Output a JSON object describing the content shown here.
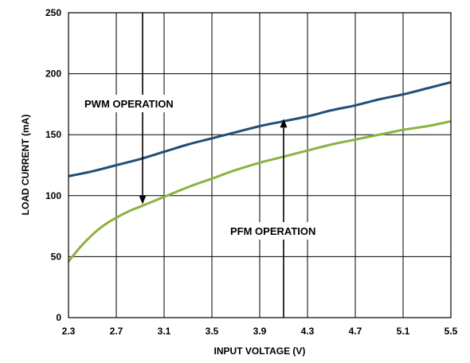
{
  "chart_data": {
    "type": "line",
    "xlabel": "INPUT VOLTAGE (V)",
    "ylabel": "LOAD CURRENT (mA)",
    "xlim": [
      2.3,
      5.5
    ],
    "ylim": [
      0,
      250
    ],
    "x_ticks": [
      2.3,
      2.7,
      3.1,
      3.5,
      3.9,
      4.3,
      4.7,
      5.1,
      5.5
    ],
    "x_tick_labels": [
      "2.3",
      "2.7",
      "3.1",
      "3.5",
      "3.9",
      "4.3",
      "4.7",
      "5.1",
      "5.5"
    ],
    "y_ticks": [
      0,
      50,
      100,
      150,
      200,
      250
    ],
    "y_tick_labels": [
      "0",
      "50",
      "100",
      "150",
      "200",
      "250"
    ],
    "grid": true,
    "series": [
      {
        "color": "#1f4e79",
        "x": [
          2.3,
          2.5,
          2.7,
          2.9,
          3.1,
          3.3,
          3.5,
          3.7,
          3.9,
          4.1,
          4.3,
          4.5,
          4.7,
          4.9,
          5.1,
          5.3,
          5.5
        ],
        "y": [
          116,
          120,
          125,
          130,
          136,
          142,
          147,
          152,
          157,
          161,
          165,
          170,
          174,
          179,
          183,
          188,
          193
        ]
      },
      {
        "color": "#8cb23f",
        "x": [
          2.3,
          2.4,
          2.5,
          2.6,
          2.7,
          2.8,
          2.9,
          3.0,
          3.1,
          3.3,
          3.5,
          3.7,
          3.9,
          4.1,
          4.3,
          4.5,
          4.7,
          4.9,
          5.1,
          5.3,
          5.5
        ],
        "y": [
          46,
          58,
          68,
          76,
          82,
          87,
          91,
          95,
          99,
          107,
          114,
          121,
          127,
          132,
          137,
          142,
          146,
          150,
          154,
          157,
          161
        ]
      }
    ],
    "annotations": [
      {
        "text": "PWM OPERATION",
        "arrow_x": 2.92,
        "arrow_from_y": 250,
        "arrow_to_y": 93,
        "arrow_direction": "down"
      },
      {
        "text": "PFM OPERATION",
        "arrow_x": 4.1,
        "arrow_from_y": 0,
        "arrow_to_y": 163,
        "arrow_direction": "up"
      }
    ]
  }
}
